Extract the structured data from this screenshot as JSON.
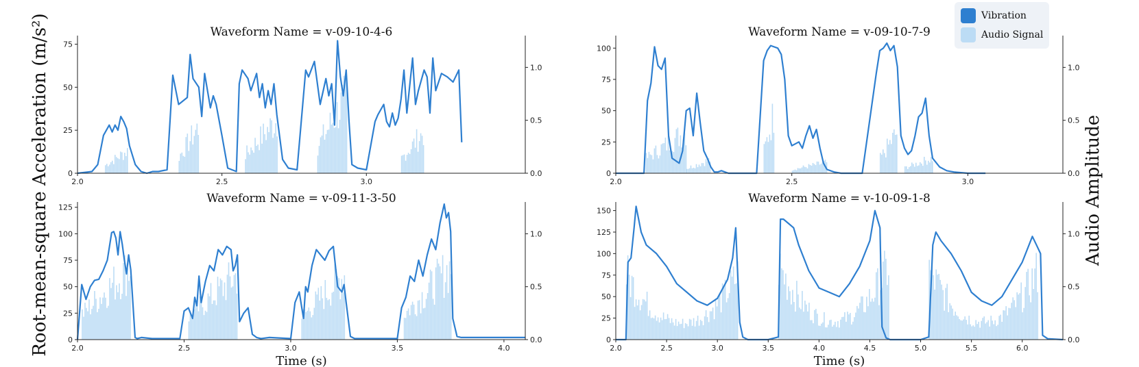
{
  "figure": {
    "ylabel_left": "Root-mean-square Acceleration (m/s²)",
    "ylabel_right": "Audio Amplitude",
    "xlabel": "Time (s)"
  },
  "legend": {
    "placement": "top-right",
    "items": [
      {
        "label": "Vibration",
        "color": "#2e7fd0"
      },
      {
        "label": "Audio Signal",
        "color": "#bcdcf5"
      }
    ]
  },
  "colors": {
    "vibration": "#2e7fd0",
    "audio": "#bcdcf5",
    "axis": "#222222"
  },
  "chart_data": [
    {
      "type": "line",
      "title": "Waveform Name = v-09-10-4-6",
      "xlabel": "",
      "xlim": [
        2.0,
        3.55
      ],
      "xticks": [
        2.0,
        2.5,
        3.0
      ],
      "ylim": [
        0,
        80
      ],
      "yticks": [
        0,
        25,
        50,
        75
      ],
      "y2lim": [
        0,
        1.3
      ],
      "y2ticks": [
        0.0,
        0.5,
        1.0
      ],
      "series": [
        {
          "name": "Vibration",
          "axis": "left",
          "x": [
            2.0,
            2.05,
            2.07,
            2.09,
            2.1,
            2.11,
            2.12,
            2.13,
            2.14,
            2.15,
            2.16,
            2.17,
            2.18,
            2.2,
            2.22,
            2.24,
            2.26,
            2.28,
            2.31,
            2.33,
            2.35,
            2.38,
            2.39,
            2.4,
            2.42,
            2.43,
            2.44,
            2.46,
            2.47,
            2.48,
            2.5,
            2.52,
            2.55,
            2.56,
            2.57,
            2.59,
            2.6,
            2.62,
            2.63,
            2.64,
            2.65,
            2.66,
            2.67,
            2.68,
            2.69,
            2.71,
            2.73,
            2.76,
            2.79,
            2.8,
            2.82,
            2.84,
            2.86,
            2.87,
            2.88,
            2.89,
            2.9,
            2.91,
            2.92,
            2.93,
            2.94,
            2.95,
            2.97,
            3.0,
            3.03,
            3.04,
            3.06,
            3.07,
            3.08,
            3.09,
            3.1,
            3.11,
            3.12,
            3.13,
            3.14,
            3.16,
            3.17,
            3.18,
            3.2,
            3.21,
            3.22,
            3.23,
            3.24,
            3.26,
            3.28,
            3.3,
            3.32,
            3.33
          ],
          "y": [
            0,
            1,
            5,
            22,
            25,
            28,
            24,
            28,
            25,
            33,
            30,
            26,
            16,
            5,
            1,
            0,
            1,
            1,
            2,
            57,
            40,
            44,
            69,
            55,
            50,
            33,
            58,
            38,
            45,
            40,
            22,
            3,
            1,
            52,
            60,
            55,
            48,
            58,
            44,
            52,
            38,
            48,
            40,
            52,
            34,
            8,
            3,
            2,
            60,
            56,
            65,
            40,
            55,
            45,
            52,
            28,
            77,
            56,
            45,
            60,
            30,
            5,
            3,
            2,
            30,
            34,
            40,
            30,
            27,
            35,
            28,
            32,
            43,
            60,
            35,
            67,
            40,
            48,
            60,
            56,
            35,
            67,
            48,
            58,
            56,
            53,
            60,
            18
          ]
        },
        {
          "name": "Audio Signal",
          "axis": "right",
          "bursts": [
            [
              2.095,
              2.175,
              0.3
            ],
            [
              2.35,
              2.42,
              0.62
            ],
            [
              2.58,
              2.69,
              0.7
            ],
            [
              2.83,
              2.93,
              1.0
            ],
            [
              3.12,
              3.2,
              0.55
            ]
          ]
        }
      ]
    },
    {
      "type": "line",
      "title": "Waveform Name = v-09-10-7-9",
      "xlabel": "",
      "xlim": [
        2.0,
        3.27
      ],
      "xticks": [
        2.0,
        2.5,
        3.0
      ],
      "ylim": [
        0,
        110
      ],
      "yticks": [
        0,
        25,
        50,
        75,
        100
      ],
      "y2lim": [
        0,
        1.3
      ],
      "y2ticks": [
        0.0,
        0.5,
        1.0
      ],
      "series": [
        {
          "name": "Vibration",
          "axis": "left",
          "x": [
            2.0,
            2.03,
            2.06,
            2.08,
            2.09,
            2.1,
            2.11,
            2.12,
            2.13,
            2.14,
            2.15,
            2.16,
            2.17,
            2.18,
            2.19,
            2.2,
            2.21,
            2.22,
            2.23,
            2.24,
            2.25,
            2.26,
            2.27,
            2.28,
            2.29,
            2.3,
            2.31,
            2.32,
            2.34,
            2.36,
            2.4,
            2.42,
            2.43,
            2.44,
            2.46,
            2.47,
            2.48,
            2.49,
            2.5,
            2.52,
            2.53,
            2.54,
            2.55,
            2.56,
            2.57,
            2.58,
            2.59,
            2.6,
            2.62,
            2.64,
            2.7,
            2.74,
            2.75,
            2.76,
            2.77,
            2.78,
            2.79,
            2.8,
            2.81,
            2.82,
            2.83,
            2.84,
            2.85,
            2.86,
            2.87,
            2.88,
            2.89,
            2.9,
            2.92,
            2.94,
            2.96,
            3.0,
            3.05
          ],
          "y": [
            0,
            0,
            0,
            0,
            58,
            72,
            101,
            86,
            83,
            92,
            30,
            12,
            10,
            8,
            18,
            50,
            52,
            30,
            64,
            40,
            18,
            12,
            5,
            1,
            1,
            2,
            1,
            0,
            0,
            0,
            0,
            90,
            98,
            102,
            100,
            95,
            75,
            30,
            22,
            25,
            20,
            30,
            38,
            28,
            35,
            20,
            8,
            3,
            1,
            0,
            0,
            80,
            98,
            100,
            104,
            98,
            102,
            85,
            30,
            20,
            15,
            18,
            30,
            45,
            48,
            60,
            30,
            12,
            5,
            2,
            1,
            0,
            0
          ]
        },
        {
          "name": "Audio Signal",
          "axis": "right",
          "bursts": [
            [
              2.085,
              2.2,
              0.55
            ],
            [
              2.2,
              2.27,
              0.18
            ],
            [
              2.42,
              2.45,
              0.82
            ],
            [
              2.5,
              2.6,
              0.14
            ],
            [
              2.75,
              2.8,
              0.55
            ],
            [
              2.82,
              2.9,
              0.2
            ]
          ]
        }
      ]
    },
    {
      "type": "line",
      "title": "Waveform Name = v-09-11-3-50",
      "xlabel": "Time (s)",
      "xlim": [
        2.0,
        4.1
      ],
      "xticks": [
        2.0,
        2.5,
        3.0,
        3.5,
        4.0
      ],
      "ylim": [
        0,
        130
      ],
      "yticks": [
        0,
        25,
        50,
        75,
        100,
        125
      ],
      "y2lim": [
        0,
        1.3
      ],
      "y2ticks": [
        0.0,
        0.5,
        1.0
      ],
      "series": [
        {
          "name": "Vibration",
          "axis": "left",
          "x": [
            2.0,
            2.02,
            2.04,
            2.06,
            2.08,
            2.1,
            2.12,
            2.14,
            2.16,
            2.17,
            2.18,
            2.19,
            2.2,
            2.21,
            2.22,
            2.23,
            2.24,
            2.25,
            2.27,
            2.28,
            2.3,
            2.35,
            2.4,
            2.48,
            2.5,
            2.52,
            2.54,
            2.55,
            2.56,
            2.57,
            2.58,
            2.6,
            2.62,
            2.64,
            2.66,
            2.68,
            2.7,
            2.72,
            2.73,
            2.74,
            2.75,
            2.76,
            2.78,
            2.8,
            2.82,
            2.84,
            2.86,
            2.9,
            3.0,
            3.02,
            3.04,
            3.06,
            3.07,
            3.08,
            3.1,
            3.12,
            3.14,
            3.16,
            3.18,
            3.2,
            3.22,
            3.24,
            3.25,
            3.26,
            3.28,
            3.3,
            3.32,
            3.35,
            3.5,
            3.52,
            3.54,
            3.56,
            3.58,
            3.6,
            3.62,
            3.64,
            3.66,
            3.68,
            3.7,
            3.72,
            3.73,
            3.74,
            3.75,
            3.76,
            3.78,
            3.8,
            4.0,
            4.1
          ],
          "y": [
            0,
            52,
            38,
            50,
            56,
            57,
            65,
            75,
            101,
            102,
            96,
            80,
            102,
            90,
            75,
            62,
            80,
            66,
            2,
            1,
            2,
            1,
            1,
            1,
            27,
            30,
            20,
            40,
            32,
            60,
            35,
            55,
            70,
            65,
            85,
            80,
            88,
            85,
            65,
            70,
            80,
            17,
            25,
            30,
            5,
            2,
            1,
            2,
            1,
            35,
            45,
            20,
            50,
            45,
            70,
            85,
            80,
            75,
            84,
            88,
            50,
            45,
            52,
            35,
            3,
            1,
            1,
            1,
            1,
            30,
            40,
            60,
            55,
            75,
            60,
            80,
            95,
            85,
            110,
            128,
            115,
            120,
            102,
            20,
            3,
            2,
            2,
            2
          ]
        },
        {
          "name": "Audio Signal",
          "axis": "right",
          "bursts": [
            [
              2.02,
              2.25,
              0.95
            ],
            [
              2.52,
              2.75,
              0.85
            ],
            [
              3.05,
              3.25,
              0.85
            ],
            [
              3.53,
              3.75,
              0.95
            ]
          ]
        }
      ]
    },
    {
      "type": "line",
      "title": "Waveform Name = v-10-09-1-8",
      "xlabel": "Time (s)",
      "xlim": [
        2.0,
        6.4
      ],
      "xticks": [
        2.0,
        2.5,
        3.0,
        3.5,
        4.0,
        4.5,
        5.0,
        5.5,
        6.0
      ],
      "ylim": [
        0,
        160
      ],
      "yticks": [
        0,
        25,
        50,
        75,
        100,
        125,
        150
      ],
      "y2lim": [
        0,
        1.3
      ],
      "y2ticks": [
        0.0,
        0.5,
        1.0
      ],
      "series": [
        {
          "name": "Vibration",
          "axis": "left",
          "x": [
            2.0,
            2.1,
            2.12,
            2.15,
            2.18,
            2.2,
            2.25,
            2.3,
            2.4,
            2.5,
            2.6,
            2.7,
            2.8,
            2.9,
            3.0,
            3.1,
            3.15,
            3.18,
            3.22,
            3.25,
            3.3,
            3.5,
            3.6,
            3.62,
            3.65,
            3.7,
            3.75,
            3.8,
            3.9,
            4.0,
            4.1,
            4.2,
            4.3,
            4.4,
            4.5,
            4.55,
            4.6,
            4.62,
            4.66,
            4.7,
            4.8,
            5.0,
            5.08,
            5.12,
            5.15,
            5.2,
            5.3,
            5.4,
            5.5,
            5.6,
            5.7,
            5.8,
            5.9,
            6.0,
            6.05,
            6.1,
            6.14,
            6.18,
            6.2,
            6.25,
            6.4
          ],
          "y": [
            0,
            0,
            90,
            95,
            130,
            155,
            125,
            110,
            100,
            85,
            65,
            55,
            45,
            40,
            48,
            70,
            95,
            130,
            20,
            3,
            0,
            0,
            3,
            140,
            140,
            135,
            130,
            110,
            80,
            60,
            55,
            50,
            65,
            85,
            115,
            150,
            130,
            15,
            2,
            0,
            0,
            0,
            3,
            110,
            125,
            115,
            100,
            80,
            55,
            45,
            40,
            50,
            70,
            90,
            105,
            120,
            110,
            100,
            5,
            1,
            0
          ]
        },
        {
          "name": "Audio Signal",
          "axis": "right",
          "bursts": [
            [
              2.1,
              3.2,
              0.85,
              "u"
            ],
            [
              3.6,
              4.68,
              0.95,
              "u"
            ],
            [
              5.08,
              6.15,
              0.9,
              "u"
            ]
          ]
        }
      ]
    }
  ]
}
